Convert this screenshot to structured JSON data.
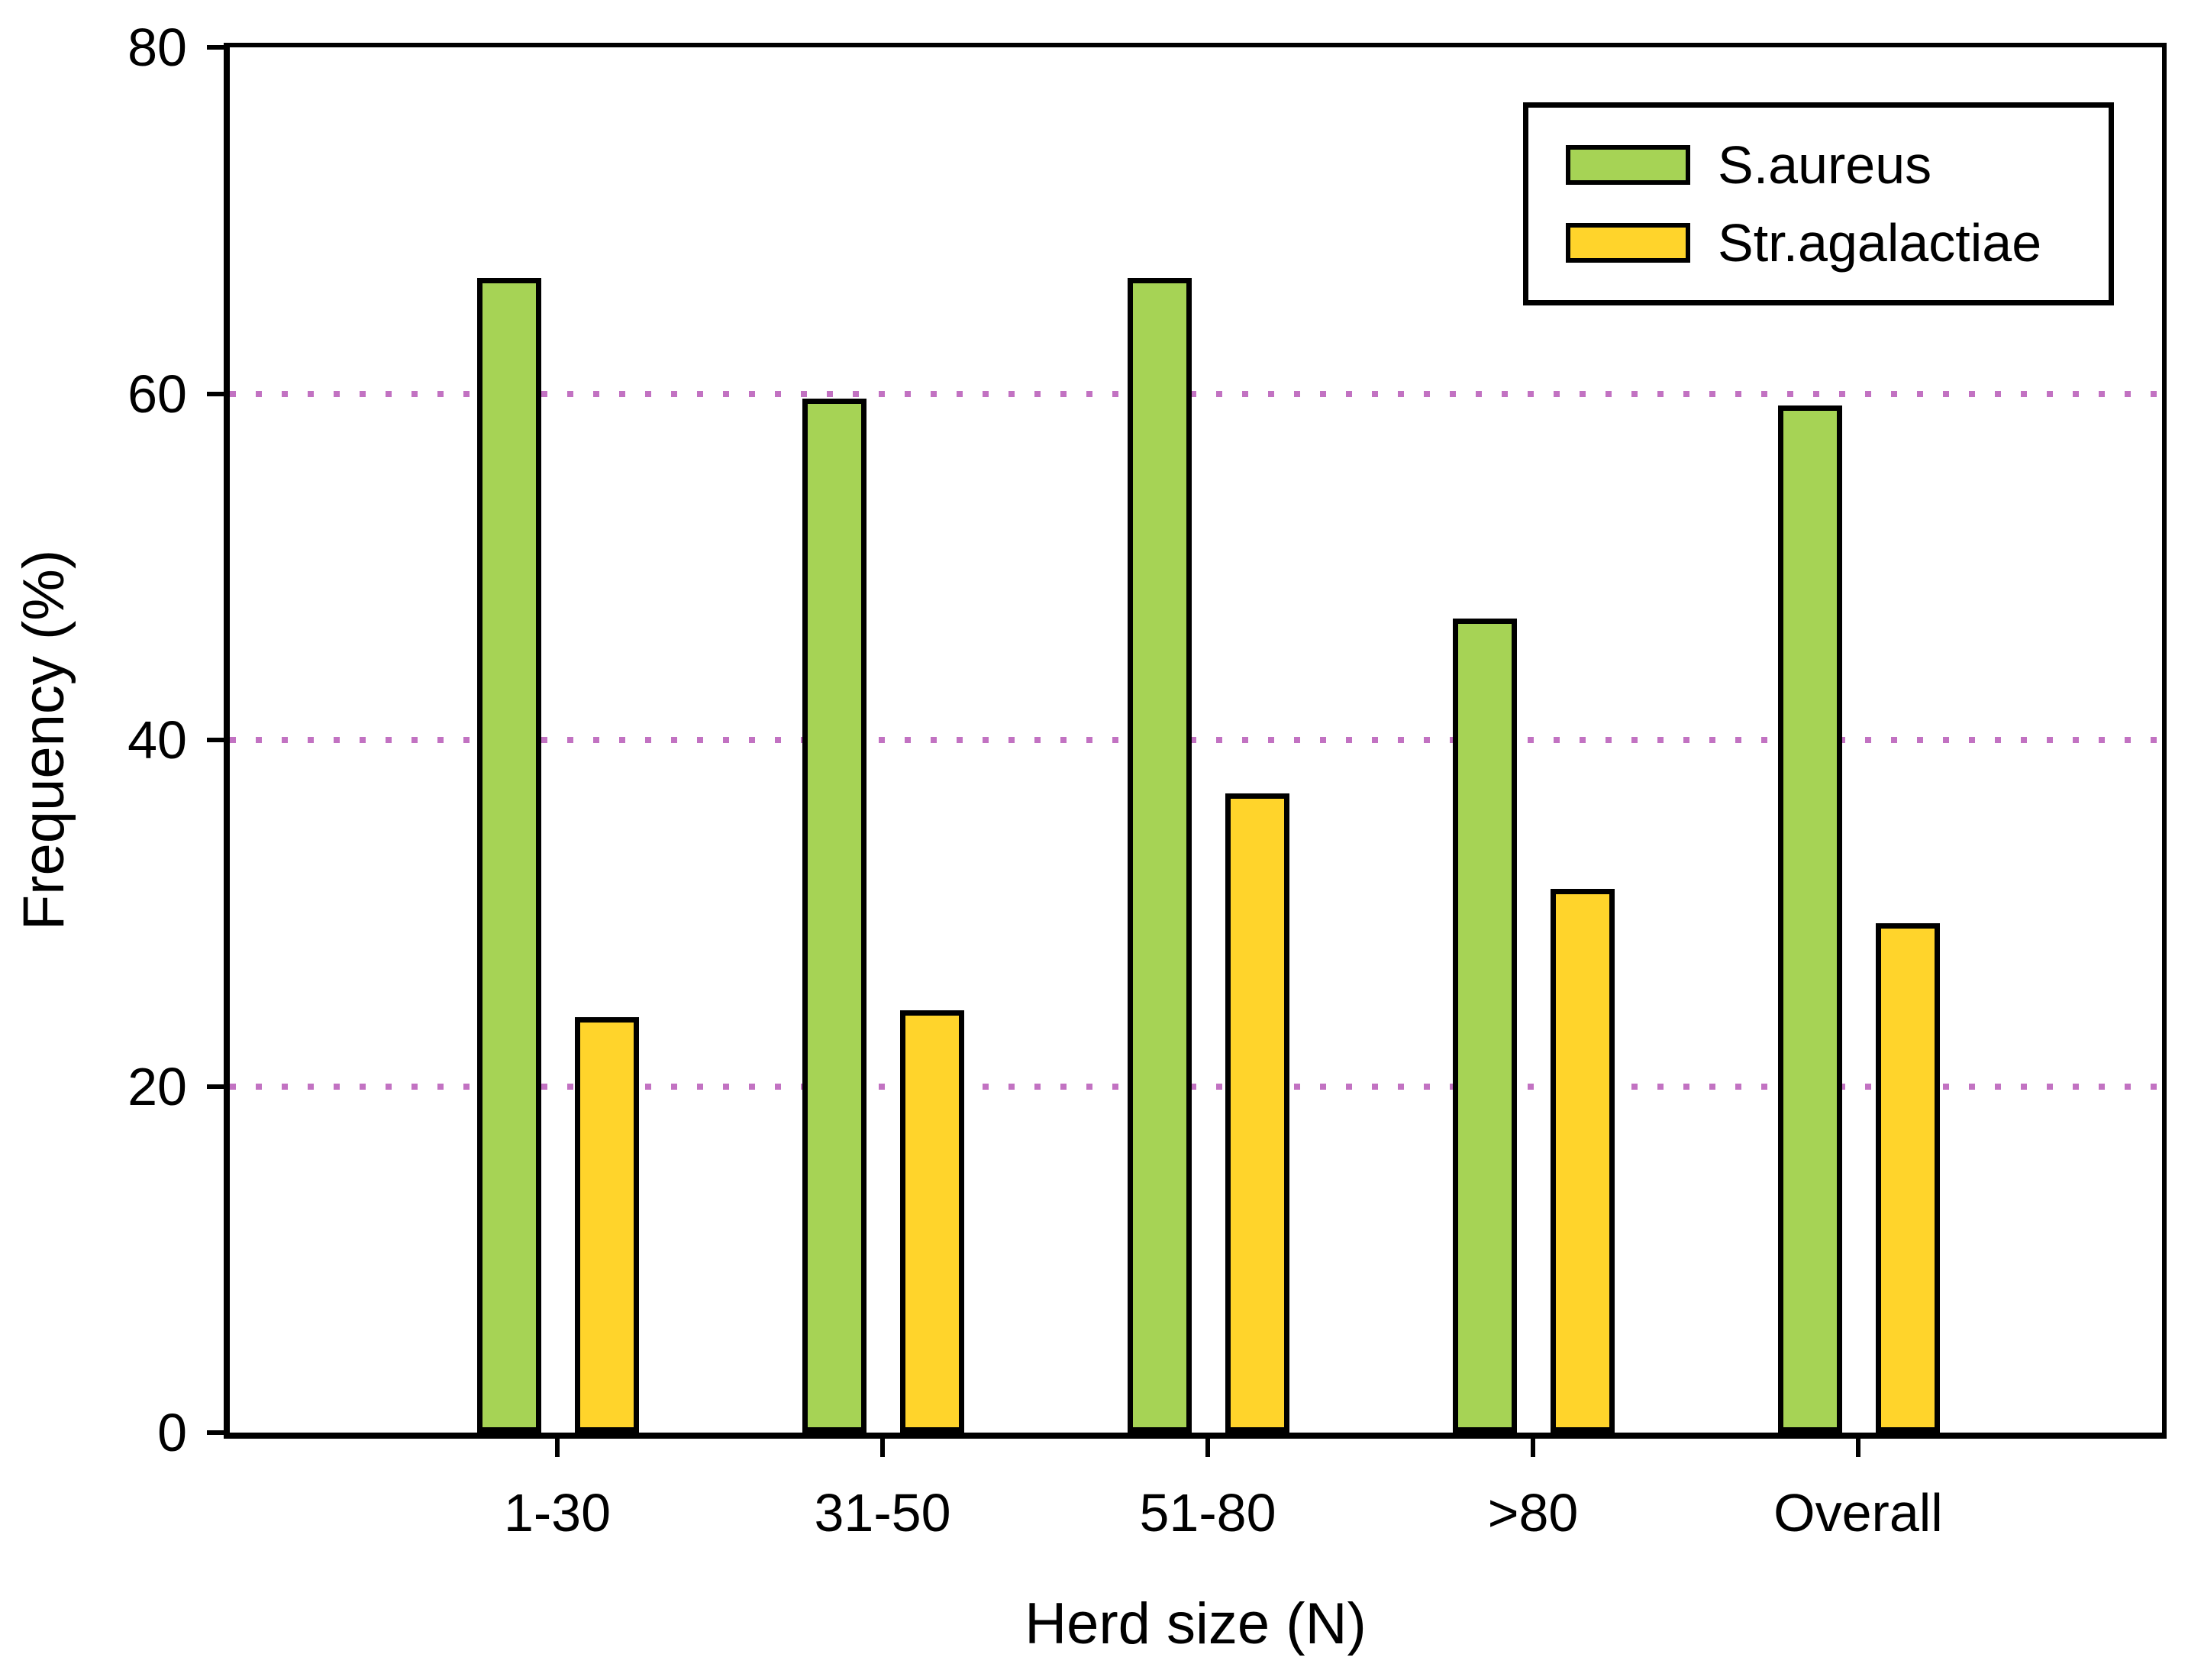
{
  "chart_data": {
    "type": "bar",
    "title": "",
    "categories": [
      "1-30",
      "31-50",
      "51-80",
      ">80",
      "Overall"
    ],
    "series": [
      {
        "name": "S.aureus",
        "color": "#A6D355",
        "values": [
          66.7,
          59.7,
          66.7,
          47.0,
          59.3
        ]
      },
      {
        "name": "Str.agalactiae",
        "color": "#FFD42B",
        "values": [
          24.0,
          24.4,
          36.9,
          31.4,
          29.4
        ]
      }
    ],
    "xlabel": "Herd size (N)",
    "ylabel": "Frequency (%)",
    "ylim": [
      0,
      80
    ],
    "yticks": [
      0,
      20,
      40,
      60,
      80
    ],
    "gridlines": {
      "values": [
        20,
        40,
        60
      ],
      "style": "dotted",
      "color": "#C272C2"
    },
    "legend_position": "top-right",
    "bar_border_color": "#000000",
    "axis_color": "#000000",
    "background_color": "#FFFFFF"
  }
}
